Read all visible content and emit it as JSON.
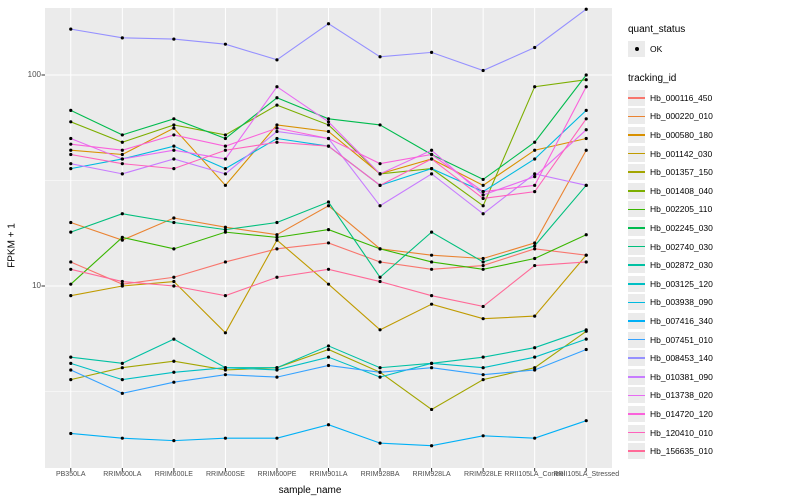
{
  "figure": {
    "background": "#FFFFFF",
    "panel_bg": "#EBEBEB",
    "grid_color": "#FFFFFF",
    "tick_color": "#333333",
    "tick_text_color": "#4D4D4D",
    "point_color": "#000000"
  },
  "axes": {
    "x_title": "sample_name",
    "y_title": "FPKM + 1",
    "y_tick_labels": [
      {
        "label": "100",
        "value": 100
      },
      {
        "label": "10",
        "value": 10
      }
    ]
  },
  "legend": {
    "quant_status_title": "quant_status",
    "quant_status_items": [
      {
        "label": "OK"
      }
    ],
    "tracking_id_title": "tracking_id"
  },
  "chart_data": {
    "type": "line",
    "title": "",
    "xlabel": "sample_name",
    "ylabel": "FPKM + 1",
    "x_type": "categorical",
    "y_scale": "log10",
    "ylim": [
      1.3,
      220
    ],
    "grid": true,
    "legend_position": "right",
    "point_shape": "black-dot",
    "categories": [
      "PB350LA",
      "RRIM600LA",
      "RRIM600LE",
      "RRIM600SE",
      "RRIM600PE",
      "RRIM901LA",
      "RRIM928BA",
      "RRIM928LA",
      "RRIM928LE",
      "RRII105LA_Control",
      "RRII105LA_Stressed"
    ],
    "series": [
      {
        "name": "Hb_000116_450",
        "color": "#F8766D",
        "values": [
          13,
          10.2,
          11,
          13,
          15,
          16,
          13,
          12,
          12.5,
          15,
          14
        ]
      },
      {
        "name": "Hb_000220_010",
        "color": "#EA8331",
        "values": [
          20,
          16.5,
          21,
          19,
          17.5,
          24,
          15,
          14,
          13.5,
          16,
          44
        ]
      },
      {
        "name": "Hb_000580_180",
        "color": "#D89000",
        "values": [
          44,
          42,
          56,
          30,
          58,
          54,
          34,
          40,
          30,
          44,
          50
        ]
      },
      {
        "name": "Hb_001142_030",
        "color": "#C09B00",
        "values": [
          9,
          10,
          10.5,
          6,
          16.5,
          10.2,
          6.2,
          8.2,
          7,
          7.2,
          14
        ]
      },
      {
        "name": "Hb_001357_150",
        "color": "#A3A500",
        "values": [
          3.6,
          4.1,
          4.4,
          4.0,
          4.1,
          5.0,
          3.9,
          2.6,
          3.6,
          4.1,
          6.1
        ]
      },
      {
        "name": "Hb_001408_040",
        "color": "#7CAE00",
        "values": [
          60,
          48,
          58,
          52,
          72,
          58,
          34,
          36,
          24,
          88,
          95
        ]
      },
      {
        "name": "Hb_002205_110",
        "color": "#39B600",
        "values": [
          10.2,
          17,
          15,
          18,
          17,
          18.5,
          15,
          13,
          12,
          13.5,
          17.5
        ]
      },
      {
        "name": "Hb_002245_030",
        "color": "#00BB4E",
        "values": [
          68,
          52,
          62,
          50,
          78,
          62,
          58,
          42,
          32,
          48,
          100
        ]
      },
      {
        "name": "Hb_002740_030",
        "color": "#00BF7D",
        "values": [
          18,
          22,
          20,
          18.5,
          20,
          25,
          11,
          18,
          13,
          15.5,
          30
        ]
      },
      {
        "name": "Hb_002872_030",
        "color": "#00C1A3",
        "values": [
          4.6,
          4.3,
          5.6,
          4.1,
          4.1,
          5.2,
          4.1,
          4.3,
          4.6,
          5.1,
          6.2
        ]
      },
      {
        "name": "Hb_003125_120",
        "color": "#00BFC4",
        "values": [
          4.3,
          3.6,
          3.9,
          4.1,
          4.0,
          4.6,
          3.7,
          4.3,
          4.1,
          4.6,
          5.6
        ]
      },
      {
        "name": "Hb_003938_090",
        "color": "#00BAE0",
        "values": [
          36,
          40,
          46,
          36,
          50,
          46,
          30,
          36,
          28,
          40,
          68
        ]
      },
      {
        "name": "Hb_007416_340",
        "color": "#00B0F6",
        "values": [
          2.0,
          1.9,
          1.85,
          1.9,
          1.9,
          2.2,
          1.8,
          1.75,
          1.95,
          1.9,
          2.3
        ]
      },
      {
        "name": "Hb_007451_010",
        "color": "#35A2FF",
        "values": [
          4.0,
          3.1,
          3.5,
          3.8,
          3.7,
          4.2,
          3.9,
          4.1,
          3.8,
          4.0,
          5.0
        ]
      },
      {
        "name": "Hb_008453_140",
        "color": "#9590FF",
        "values": [
          165,
          150,
          148,
          140,
          118,
          175,
          122,
          128,
          105,
          135,
          205
        ]
      },
      {
        "name": "Hb_010381_090",
        "color": "#C77CFF",
        "values": [
          38,
          34,
          40,
          34,
          54,
          50,
          24,
          34,
          22,
          34,
          30
        ]
      },
      {
        "name": "Hb_013738_020",
        "color": "#E76BF3",
        "values": [
          50,
          40,
          44,
          40,
          88,
          60,
          34,
          44,
          27,
          33,
          55
        ]
      },
      {
        "name": "Hb_014720_120",
        "color": "#FA62DB",
        "values": [
          47,
          44,
          52,
          46,
          56,
          50,
          38,
          42,
          28,
          30,
          88
        ]
      },
      {
        "name": "Hb_120410_010",
        "color": "#FF62BC",
        "values": [
          42,
          38,
          36,
          44,
          48,
          46,
          30,
          40,
          26,
          28,
          62
        ]
      },
      {
        "name": "Hb_156635_010",
        "color": "#FF6A98",
        "values": [
          12,
          10.5,
          10,
          9,
          11,
          12,
          10.5,
          9,
          8,
          12.5,
          13
        ]
      }
    ]
  }
}
